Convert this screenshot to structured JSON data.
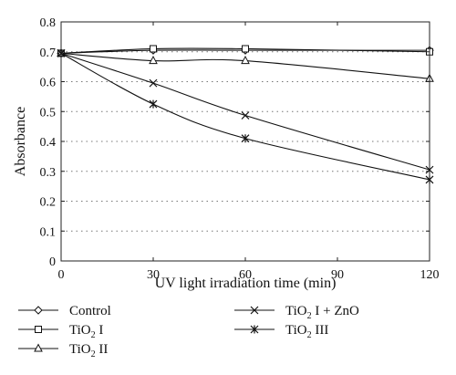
{
  "chart_data": {
    "type": "line",
    "xlabel": "UV light irradiation time (min)",
    "ylabel": "Absorbance",
    "xlim": [
      0,
      120
    ],
    "ylim": [
      0,
      0.8
    ],
    "xticks": [
      "0",
      "30",
      "60",
      "90",
      "120"
    ],
    "yticks": [
      "0",
      "0.1",
      "0.2",
      "0.3",
      "0.4",
      "0.5",
      "0.6",
      "0.7",
      "0.8"
    ],
    "grid": "horizontal-dotted",
    "x": [
      0,
      30,
      60,
      120
    ],
    "series": [
      {
        "name": "Control",
        "marker": "diamond",
        "values": [
          0.695,
          0.705,
          0.705,
          0.705
        ]
      },
      {
        "name": "TiO|2| I",
        "marker": "square",
        "values": [
          0.695,
          0.71,
          0.71,
          0.7
        ]
      },
      {
        "name": "TiO|2| II",
        "marker": "triangle",
        "values": [
          0.695,
          0.67,
          0.67,
          0.61
        ]
      },
      {
        "name": "TiO|2| I + ZnO",
        "marker": "x",
        "values": [
          0.695,
          0.595,
          0.487,
          0.305
        ]
      },
      {
        "name": "TiO|2| III",
        "marker": "star",
        "values": [
          0.695,
          0.525,
          0.41,
          0.272
        ]
      }
    ],
    "legend_placement": "below"
  }
}
